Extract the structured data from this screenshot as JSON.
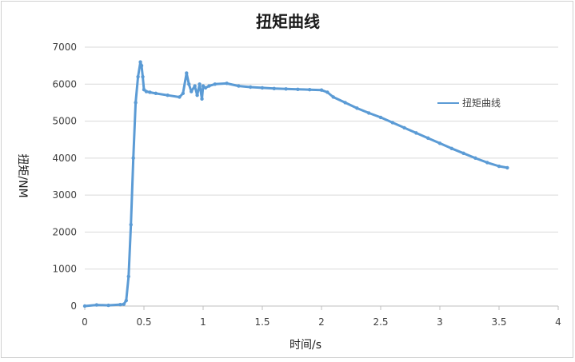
{
  "chart_data": {
    "type": "line",
    "title": "扭矩曲线",
    "xlabel": "时间/s",
    "ylabel": "扭矩/NM",
    "xlim": [
      0,
      4
    ],
    "ylim": [
      0,
      7000
    ],
    "x_ticks": [
      "0",
      "0.5",
      "1",
      "1.5",
      "2",
      "2.5",
      "3",
      "3.5",
      "4"
    ],
    "y_ticks": [
      "0",
      "1000",
      "2000",
      "3000",
      "4000",
      "5000",
      "6000",
      "7000"
    ],
    "grid": "horizontal",
    "legend": "right",
    "series": [
      {
        "name": "扭矩曲线",
        "color": "#5b9bd5",
        "x": [
          0,
          0.1,
          0.2,
          0.3,
          0.33,
          0.35,
          0.37,
          0.39,
          0.41,
          0.43,
          0.45,
          0.47,
          0.48,
          0.49,
          0.5,
          0.52,
          0.55,
          0.6,
          0.7,
          0.8,
          0.83,
          0.86,
          0.88,
          0.9,
          0.93,
          0.95,
          0.97,
          0.99,
          1.0,
          1.02,
          1.05,
          1.1,
          1.2,
          1.3,
          1.4,
          1.5,
          1.6,
          1.7,
          1.8,
          1.9,
          2.0,
          2.05,
          2.1,
          2.2,
          2.3,
          2.4,
          2.5,
          2.6,
          2.7,
          2.8,
          2.9,
          3.0,
          3.1,
          3.2,
          3.3,
          3.4,
          3.5,
          3.57
        ],
        "y": [
          0,
          30,
          20,
          40,
          50,
          150,
          800,
          2200,
          4000,
          5500,
          6200,
          6600,
          6500,
          6200,
          5850,
          5800,
          5780,
          5750,
          5700,
          5650,
          5750,
          6300,
          6000,
          5800,
          5950,
          5700,
          6000,
          5600,
          5950,
          5900,
          5950,
          6000,
          6020,
          5950,
          5920,
          5900,
          5880,
          5870,
          5860,
          5850,
          5840,
          5780,
          5650,
          5500,
          5350,
          5220,
          5100,
          4960,
          4820,
          4680,
          4540,
          4400,
          4260,
          4130,
          4000,
          3880,
          3780,
          3740
        ]
      }
    ]
  }
}
